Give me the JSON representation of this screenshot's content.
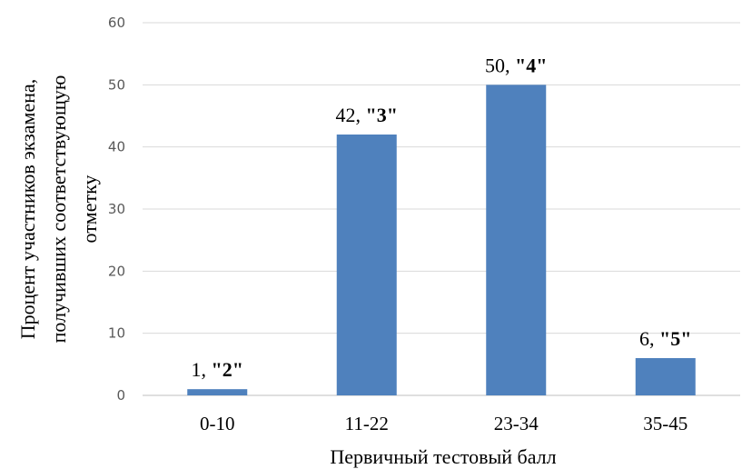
{
  "chart_data": {
    "type": "bar",
    "categories": [
      "0-10",
      "11-22",
      "23-34",
      "35-45"
    ],
    "values": [
      1,
      42,
      50,
      6
    ],
    "data_labels": [
      {
        "value": "1, ",
        "grade": "\"2\""
      },
      {
        "value": "42, ",
        "grade": "\"3\""
      },
      {
        "value": "50, ",
        "grade": "\"4\""
      },
      {
        "value": "6, ",
        "grade": "\"5\""
      }
    ],
    "xlabel": "Первичный тестовый балл",
    "ylabel_lines": [
      "Процент участников экзамена,",
      "получивших соответствующую",
      "отметку"
    ],
    "ylim": [
      0,
      60
    ],
    "yticks": [
      0,
      10,
      20,
      30,
      40,
      50,
      60
    ],
    "grid": true,
    "bar_color": "#4F81BD",
    "grid_color": "#D9D9D9"
  }
}
